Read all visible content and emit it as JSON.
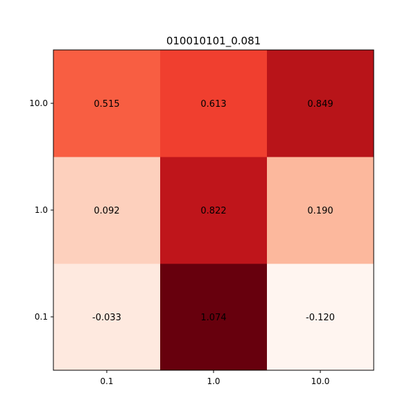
{
  "chart_data": {
    "type": "heatmap",
    "title": "010010101_0.081",
    "xlabel": "",
    "ylabel": "",
    "x_categories": [
      "0.1",
      "1.0",
      "10.0"
    ],
    "y_categories": [
      "0.1",
      "1.0",
      "10.0"
    ],
    "values": [
      [
        "-0.033",
        "1.074",
        "-0.120"
      ],
      [
        "0.092",
        "0.822",
        "0.190"
      ],
      [
        "0.515",
        "0.613",
        "0.849"
      ]
    ],
    "colormap": "Reds",
    "color_range": [
      -0.12,
      1.074
    ],
    "grid": false,
    "legend": "none"
  }
}
